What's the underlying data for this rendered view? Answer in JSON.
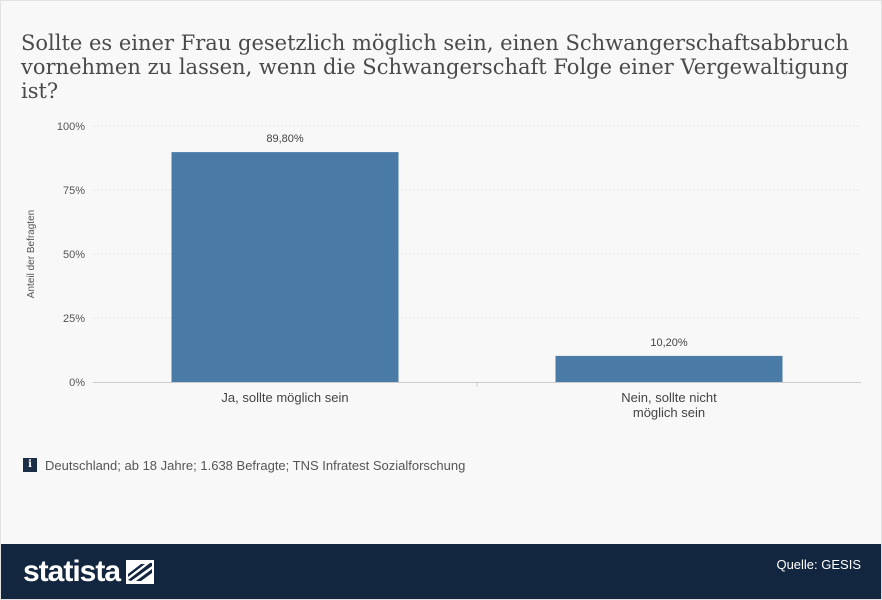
{
  "title": "Sollte es einer Frau gesetzlich möglich sein, einen Schwangerschaftsabbruch vornehmen zu lassen, wenn die Schwangerschaft Folge einer Vergewaltigung ist?",
  "info_note": "Deutschland; ab 18 Jahre; 1.638 Befragte; TNS Infratest Sozialforschung",
  "footer": {
    "brand": "statista",
    "brand_logo_icon": "statista-logo-icon",
    "source": "Quelle: GESIS"
  },
  "colors": {
    "bar": "#4a7ba7",
    "footer_bg": "#13263f",
    "background": "#f8f8f8"
  },
  "chart_data": {
    "type": "bar",
    "categories": [
      "Ja, sollte möglich sein",
      "Nein, sollte nicht möglich sein"
    ],
    "values": [
      89.8,
      10.2
    ],
    "data_labels": [
      "89,80%",
      "10,20%"
    ],
    "ylabel": "Anteil der Befragten",
    "ylim": [
      0,
      100
    ],
    "yticks": [
      "0%",
      "25%",
      "50%",
      "75%",
      "100%"
    ],
    "grid": true
  }
}
